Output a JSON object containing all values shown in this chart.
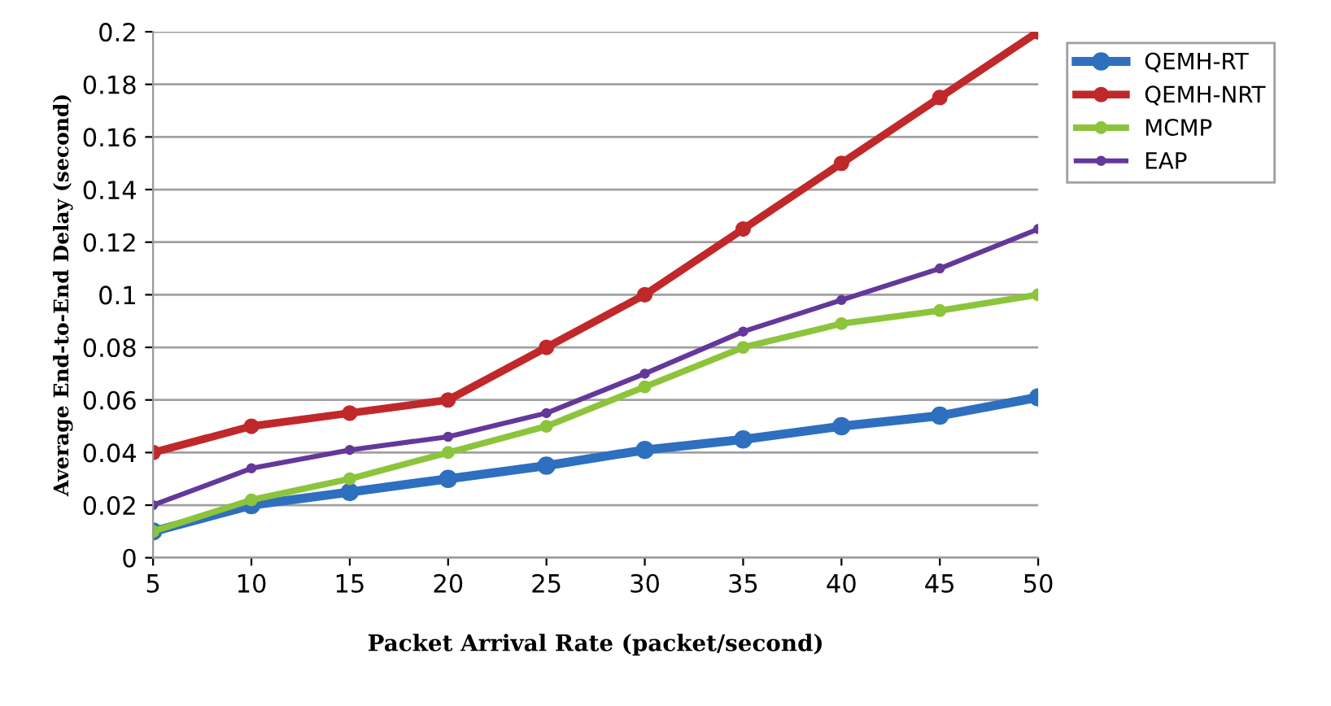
{
  "chart_data": {
    "type": "line",
    "xlabel": "Packet Arrival Rate (packet/second)",
    "ylabel": "Average End-to-End Delay (second)",
    "categories": [
      "5",
      "10",
      "15",
      "20",
      "25",
      "30",
      "35",
      "40",
      "45",
      "50"
    ],
    "series": [
      {
        "name": "QEMH-RT",
        "color": "#2e6fbf",
        "values": [
          0.01,
          0.02,
          0.025,
          0.03,
          0.035,
          0.041,
          0.045,
          0.05,
          0.054,
          0.061
        ]
      },
      {
        "name": "QEMH-NRT",
        "color": "#c0282a",
        "values": [
          0.04,
          0.05,
          0.055,
          0.06,
          0.08,
          0.1,
          0.125,
          0.15,
          0.175,
          0.2
        ]
      },
      {
        "name": "MCMP",
        "color": "#8cc43c",
        "values": [
          0.01,
          0.022,
          0.03,
          0.04,
          0.05,
          0.065,
          0.08,
          0.089,
          0.094,
          0.1
        ]
      },
      {
        "name": "EAP",
        "color": "#64389a",
        "values": [
          0.02,
          0.034,
          0.041,
          0.046,
          0.055,
          0.07,
          0.086,
          0.098,
          0.11,
          0.125
        ]
      }
    ],
    "ylim": [
      0,
      0.2
    ],
    "yticks": [
      0,
      0.02,
      0.04,
      0.06,
      0.08,
      0.1,
      0.12,
      0.14,
      0.16,
      0.18,
      0.2
    ],
    "grid": "y",
    "legend": "top right",
    "marker": "circle",
    "line_style": "solid"
  }
}
